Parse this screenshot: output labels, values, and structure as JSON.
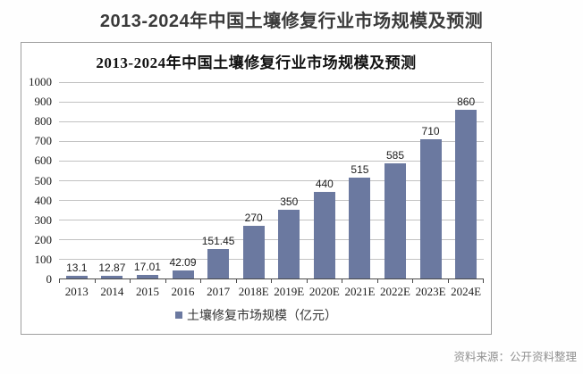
{
  "page": {
    "title": "2013-2024年中国土壤修复行业市场规模及预测",
    "source_note": "资料来源：公开资料整理"
  },
  "chart_data": {
    "type": "bar",
    "title": "2013-2024年中国土壤修复行业市场规模及预测",
    "categories": [
      "2013",
      "2014",
      "2015",
      "2016",
      "2017",
      "2018E",
      "2019E",
      "2020E",
      "2021E",
      "2022E",
      "2023E",
      "2024E"
    ],
    "values": [
      13.1,
      12.87,
      17.01,
      42.09,
      151.45,
      270,
      350,
      440,
      515,
      585,
      710,
      860
    ],
    "value_labels": [
      "13.1",
      "12.87",
      "17.01",
      "42.09",
      "151.45",
      "270",
      "350",
      "440",
      "515",
      "585",
      "710",
      "860"
    ],
    "series_name": "土壤修复市场规模（亿元）",
    "xlabel": "",
    "ylabel": "",
    "ylim": [
      0,
      1000
    ],
    "y_ticks": [
      0,
      100,
      200,
      300,
      400,
      500,
      600,
      700,
      800,
      900,
      1000
    ],
    "grid": true,
    "legend_position": "bottom",
    "bar_color": "#6b79a0"
  }
}
